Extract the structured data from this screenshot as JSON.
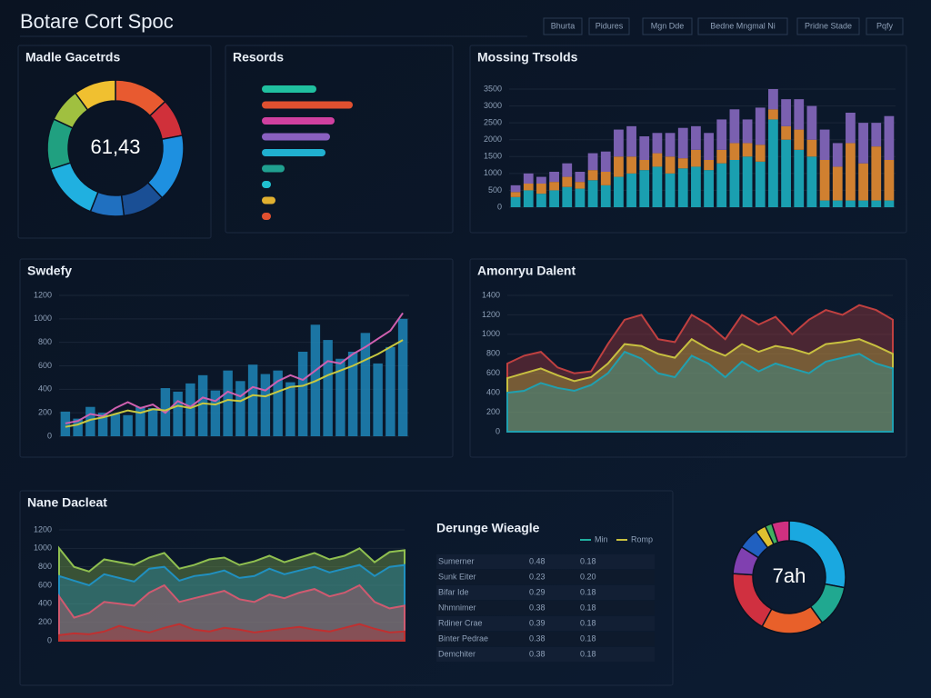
{
  "header": {
    "title": "Botare Cort Spoc",
    "tabs": [
      "Bhurta",
      "Pidures",
      "Mgn Dde",
      "Bedne Mngmal Ni",
      "Pridne Stade",
      "Pqfy"
    ]
  },
  "chart_data": [
    {
      "type": "donut",
      "title": "Madle Gacetrds",
      "center_label": "61,43",
      "values": [
        13,
        9,
        16,
        10,
        8,
        14,
        12,
        8,
        10
      ],
      "colors": [
        "#e85a30",
        "#d0303a",
        "#1e90e0",
        "#1a4f95",
        "#2070c0",
        "#20b0e0",
        "#20a080",
        "#a0c040",
        "#f0c030"
      ]
    },
    {
      "type": "hbar",
      "title": "Resords",
      "xlim": [
        0,
        110
      ],
      "values": [
        60,
        100,
        80,
        75,
        70,
        25,
        10,
        15,
        10
      ],
      "colors": [
        "#20c0a0",
        "#e05030",
        "#d040a0",
        "#8a60c0",
        "#20b0d0",
        "#20a090",
        "#20c0d0",
        "#e0b030",
        "#e05030"
      ]
    },
    {
      "type": "stacked-bar",
      "title": "Mossing Trsolds",
      "ylim": [
        0,
        3500
      ],
      "yticks": [
        0,
        500,
        1000,
        1500,
        2000,
        2500,
        3000,
        3500
      ],
      "series": [
        {
          "color": "#1a9fb0",
          "values": [
            300,
            500,
            400,
            500,
            600,
            550,
            800,
            650,
            900,
            1000,
            1100,
            1200,
            1000,
            1150,
            1200,
            1100,
            1300,
            1400,
            1500,
            1350,
            2600,
            2000,
            1700,
            1500,
            200,
            200,
            200,
            200,
            200,
            200
          ]
        },
        {
          "color": "#d08030",
          "values": [
            150,
            200,
            300,
            250,
            300,
            200,
            300,
            400,
            600,
            500,
            300,
            400,
            500,
            300,
            500,
            300,
            400,
            500,
            400,
            500,
            300,
            400,
            600,
            500,
            1200,
            1000,
            1700,
            1100,
            1600,
            1200
          ]
        },
        {
          "color": "#7a60b0",
          "values": [
            200,
            300,
            200,
            300,
            400,
            300,
            500,
            600,
            800,
            900,
            700,
            600,
            700,
            900,
            700,
            800,
            900,
            1000,
            700,
            1100,
            600,
            800,
            900,
            1000,
            900,
            700,
            900,
            1200,
            700,
            1300
          ]
        }
      ]
    },
    {
      "type": "combo",
      "title": "Swdefy",
      "ylim": [
        0,
        1200
      ],
      "yticks": [
        0,
        200,
        400,
        600,
        800,
        1000,
        1200
      ],
      "color": "#1f86b8",
      "values": [
        210,
        150,
        250,
        200,
        190,
        180,
        250,
        240,
        410,
        380,
        450,
        520,
        390,
        560,
        470,
        610,
        530,
        560,
        460,
        720,
        950,
        820,
        660,
        720,
        880,
        620,
        760,
        1000
      ],
      "series": [
        {
          "color": "#d060b0",
          "values": [
            110,
            130,
            190,
            170,
            240,
            290,
            240,
            270,
            200,
            300,
            250,
            330,
            300,
            380,
            340,
            420,
            390,
            470,
            520,
            480,
            560,
            640,
            620,
            700,
            760,
            830,
            900,
            1050
          ]
        },
        {
          "color": "#c8c840",
          "values": [
            80,
            100,
            140,
            160,
            190,
            220,
            200,
            230,
            220,
            260,
            240,
            280,
            270,
            310,
            300,
            350,
            340,
            380,
            420,
            430,
            470,
            520,
            560,
            600,
            650,
            700,
            760,
            820
          ]
        }
      ]
    },
    {
      "type": "area",
      "title": "Amonryu Dalent",
      "ylim": [
        0,
        1400
      ],
      "yticks": [
        0,
        200,
        400,
        600,
        800,
        1000,
        1200,
        1400
      ],
      "series": [
        {
          "color": "#c04040",
          "values": [
            700,
            780,
            820,
            660,
            600,
            620,
            900,
            1150,
            1200,
            950,
            920,
            1200,
            1100,
            950,
            1200,
            1100,
            1180,
            1000,
            1150,
            1250,
            1200,
            1300,
            1250,
            1150
          ]
        },
        {
          "color": "#c8c040",
          "values": [
            550,
            600,
            650,
            580,
            520,
            560,
            700,
            900,
            880,
            800,
            760,
            950,
            850,
            780,
            900,
            820,
            880,
            850,
            800,
            900,
            920,
            950,
            880,
            800
          ]
        },
        {
          "color": "#20a0b0",
          "values": [
            400,
            420,
            500,
            450,
            420,
            480,
            600,
            820,
            750,
            600,
            560,
            780,
            700,
            560,
            720,
            620,
            700,
            650,
            600,
            720,
            760,
            800,
            700,
            650
          ]
        }
      ]
    },
    {
      "type": "area",
      "title": "Nane Dacleat",
      "ylim": [
        0,
        1200
      ],
      "yticks": [
        0,
        200,
        400,
        600,
        800,
        1000,
        1200
      ],
      "series": [
        {
          "color": "#90c050",
          "values": [
            1000,
            800,
            750,
            880,
            850,
            820,
            900,
            950,
            780,
            820,
            880,
            900,
            820,
            860,
            920,
            850,
            900,
            950,
            880,
            920,
            1000,
            850,
            960,
            980
          ]
        },
        {
          "color": "#2090c0",
          "values": [
            700,
            650,
            600,
            720,
            680,
            640,
            780,
            800,
            650,
            700,
            720,
            760,
            680,
            700,
            780,
            720,
            760,
            800,
            740,
            780,
            820,
            700,
            800,
            820
          ]
        },
        {
          "color": "#d05a70",
          "values": [
            480,
            250,
            300,
            420,
            400,
            380,
            520,
            600,
            420,
            460,
            500,
            540,
            450,
            420,
            500,
            460,
            520,
            560,
            480,
            520,
            600,
            420,
            350,
            380
          ]
        },
        {
          "color": "#c03030",
          "values": [
            60,
            80,
            70,
            100,
            160,
            120,
            90,
            140,
            180,
            120,
            100,
            140,
            120,
            90,
            110,
            130,
            150,
            120,
            100,
            140,
            180,
            130,
            90,
            100
          ]
        }
      ]
    },
    {
      "type": "table",
      "title": "Derunge Wieagle",
      "legend": [
        "Min",
        "Romp"
      ],
      "colors": [
        "#e05050",
        "#e05a30",
        "#c8c040",
        "#40b070",
        "#20a0c0",
        "#2080d0",
        "#8a60c0"
      ],
      "rows": [
        [
          "Sumerner",
          "0.48",
          "0.18"
        ],
        [
          "Sunk Eiter",
          "0.23",
          "0.20"
        ],
        [
          "Bifar Ide",
          "0.29",
          "0.18"
        ],
        [
          "Nhmnimer",
          "0.38",
          "0.18"
        ],
        [
          "Rdiner Crae",
          "0.39",
          "0.18"
        ],
        [
          "Binter Pedrae",
          "0.38",
          "0.18"
        ],
        [
          "Demchiter",
          "0.38",
          "0.18"
        ]
      ]
    },
    {
      "type": "donut",
      "center_label": "7ah",
      "values": [
        28,
        12,
        18,
        18,
        8,
        6,
        3,
        2,
        5
      ],
      "colors": [
        "#1aa8e0",
        "#20a890",
        "#e8602a",
        "#d03040",
        "#8040b0",
        "#2060c0",
        "#e0c030",
        "#40b060",
        "#d03080"
      ]
    }
  ]
}
